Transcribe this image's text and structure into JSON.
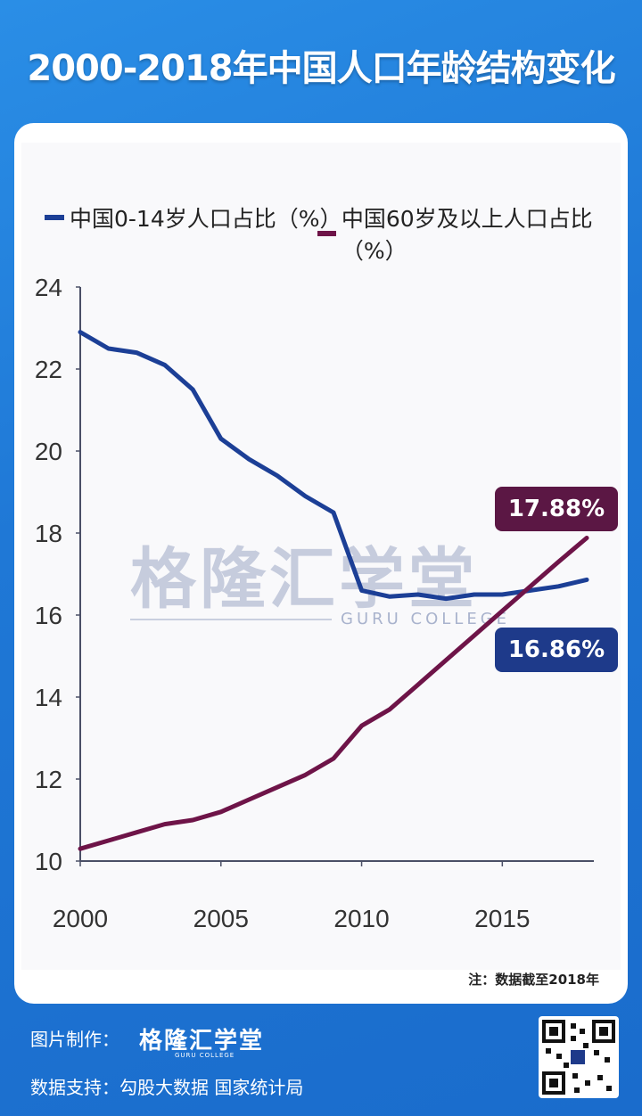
{
  "header": {
    "title": "2000-2018年中国人口年龄结构变化"
  },
  "colors": {
    "youth": "#1c3f96",
    "elderly": "#6e1448",
    "badge_elderly": "#5b1744",
    "badge_youth": "#1e3a8a"
  },
  "chart_data": {
    "type": "line",
    "xlabel": "",
    "ylabel": "",
    "xlim": [
      2000,
      2018
    ],
    "ylim": [
      10,
      24
    ],
    "x_ticks": [
      2000,
      2005,
      2010,
      2015
    ],
    "y_ticks": [
      10,
      12,
      14,
      16,
      18,
      20,
      22,
      24
    ],
    "legend_placement": "top",
    "grid": false,
    "series": [
      {
        "name": "中国0-14岁人口占比（%）",
        "x": [
          2000,
          2001,
          2002,
          2003,
          2004,
          2005,
          2006,
          2007,
          2008,
          2009,
          2010,
          2011,
          2012,
          2013,
          2014,
          2015,
          2016,
          2017,
          2018
        ],
        "values": [
          22.9,
          22.5,
          22.4,
          22.1,
          21.5,
          20.3,
          19.8,
          19.4,
          18.9,
          18.5,
          16.6,
          16.45,
          16.5,
          16.4,
          16.5,
          16.5,
          16.6,
          16.7,
          16.86
        ]
      },
      {
        "name": "中国60岁及以上人口占比（%）",
        "x": [
          2000,
          2001,
          2002,
          2003,
          2004,
          2005,
          2006,
          2007,
          2008,
          2009,
          2010,
          2011,
          2012,
          2013,
          2014,
          2015,
          2016,
          2017,
          2018
        ],
        "values": [
          10.3,
          10.5,
          10.7,
          10.9,
          11.0,
          11.2,
          11.5,
          11.8,
          12.1,
          12.5,
          13.3,
          13.7,
          14.3,
          14.9,
          15.5,
          16.1,
          16.7,
          17.3,
          17.88
        ]
      }
    ],
    "annotations": [
      "17.88%",
      "16.86%"
    ]
  },
  "badges": {
    "elderly_last": "17.88%",
    "youth_last": "16.86%"
  },
  "watermark": {
    "main": "格隆汇学堂",
    "sub": "GURU COLLEGE"
  },
  "note": "注：数据截至2018年",
  "footer": {
    "made_by_label": "图片制作：",
    "brand": "格隆汇学堂",
    "brand_sub": "GURU COLLEGE",
    "data_support": "数据支持：勾股大数据  国家统计局"
  }
}
